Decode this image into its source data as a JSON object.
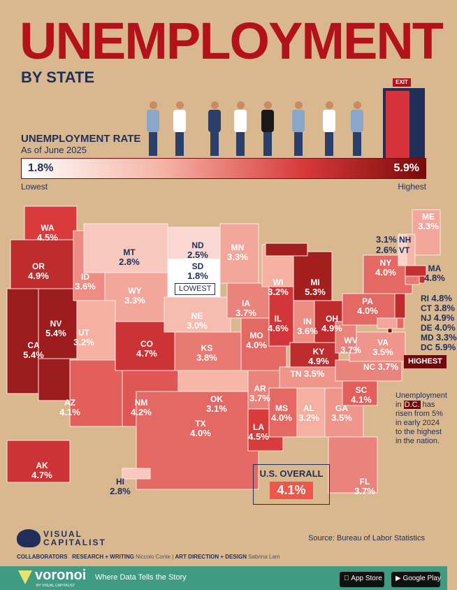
{
  "header": {
    "title": "UNEMPLOYMENT",
    "subtitle": "BY STATE",
    "exit_sign": "EXIT"
  },
  "legend": {
    "label": "UNEMPLOYMENT RATE",
    "sublabel": "As of June 2025",
    "min": "1.8%",
    "max": "5.9%",
    "low_label": "Lowest",
    "high_label": "Highest",
    "colors": {
      "low": "#ffffff",
      "high": "#7a0a0a"
    }
  },
  "states": [
    {
      "abbr": "WA",
      "value": 4.5,
      "text": "4.5%"
    },
    {
      "abbr": "OR",
      "value": 4.9,
      "text": "4.9%"
    },
    {
      "abbr": "CA",
      "value": 5.4,
      "text": "5.4%"
    },
    {
      "abbr": "NV",
      "value": 5.4,
      "text": "5.4%"
    },
    {
      "abbr": "ID",
      "value": 3.6,
      "text": "3.6%"
    },
    {
      "abbr": "MT",
      "value": 2.8,
      "text": "2.8%"
    },
    {
      "abbr": "WY",
      "value": 3.3,
      "text": "3.3%"
    },
    {
      "abbr": "UT",
      "value": 3.2,
      "text": "3.2%"
    },
    {
      "abbr": "AZ",
      "value": 4.1,
      "text": "4.1%"
    },
    {
      "abbr": "CO",
      "value": 4.7,
      "text": "4.7%"
    },
    {
      "abbr": "NM",
      "value": 4.2,
      "text": "4.2%"
    },
    {
      "abbr": "ND",
      "value": 2.5,
      "text": "2.5%"
    },
    {
      "abbr": "SD",
      "value": 1.8,
      "text": "1.8%"
    },
    {
      "abbr": "NE",
      "value": 3.0,
      "text": "3.0%"
    },
    {
      "abbr": "KS",
      "value": 3.8,
      "text": "3.8%"
    },
    {
      "abbr": "OK",
      "value": 3.1,
      "text": "3.1%"
    },
    {
      "abbr": "TX",
      "value": 4.0,
      "text": "4.0%"
    },
    {
      "abbr": "MN",
      "value": 3.3,
      "text": "3.3%"
    },
    {
      "abbr": "IA",
      "value": 3.7,
      "text": "3.7%"
    },
    {
      "abbr": "MO",
      "value": 4.0,
      "text": "4.0%"
    },
    {
      "abbr": "AR",
      "value": 3.7,
      "text": "3.7%"
    },
    {
      "abbr": "LA",
      "value": 4.5,
      "text": "4.5%"
    },
    {
      "abbr": "WI",
      "value": 3.2,
      "text": "3.2%"
    },
    {
      "abbr": "IL",
      "value": 4.6,
      "text": "4.6%"
    },
    {
      "abbr": "MI",
      "value": 5.3,
      "text": "5.3%"
    },
    {
      "abbr": "IN",
      "value": 3.6,
      "text": "3.6%"
    },
    {
      "abbr": "OH",
      "value": 4.9,
      "text": "4.9%"
    },
    {
      "abbr": "KY",
      "value": 4.9,
      "text": "4.9%"
    },
    {
      "abbr": "TN",
      "value": 3.5,
      "text": "3.5%"
    },
    {
      "abbr": "MS",
      "value": 4.0,
      "text": "4.0%"
    },
    {
      "abbr": "AL",
      "value": 3.2,
      "text": "3.2%"
    },
    {
      "abbr": "GA",
      "value": 3.5,
      "text": "3.5%"
    },
    {
      "abbr": "FL",
      "value": 3.7,
      "text": "3.7%"
    },
    {
      "abbr": "SC",
      "value": 4.1,
      "text": "4.1%"
    },
    {
      "abbr": "NC",
      "value": 3.7,
      "text": "3.7%"
    },
    {
      "abbr": "VA",
      "value": 3.5,
      "text": "3.5%"
    },
    {
      "abbr": "WV",
      "value": 3.7,
      "text": "3.7%"
    },
    {
      "abbr": "PA",
      "value": 4.0,
      "text": "4.0%"
    },
    {
      "abbr": "NY",
      "value": 4.0,
      "text": "4.0%"
    },
    {
      "abbr": "ME",
      "value": 3.3,
      "text": "3.3%"
    },
    {
      "abbr": "NH",
      "value": 3.1,
      "text": "3.1%"
    },
    {
      "abbr": "VT",
      "value": 2.6,
      "text": "2.6%"
    },
    {
      "abbr": "MA",
      "value": 4.8,
      "text": "4.8%"
    },
    {
      "abbr": "RI",
      "value": 4.8,
      "text": "4.8%"
    },
    {
      "abbr": "CT",
      "value": 3.8,
      "text": "3.8%"
    },
    {
      "abbr": "NJ",
      "value": 4.9,
      "text": "4.9%"
    },
    {
      "abbr": "DE",
      "value": 4.0,
      "text": "4.0%"
    },
    {
      "abbr": "MD",
      "value": 3.3,
      "text": "3.3%"
    },
    {
      "abbr": "DC",
      "value": 5.9,
      "text": "5.9%"
    },
    {
      "abbr": "AK",
      "value": 4.7,
      "text": "4.7%"
    },
    {
      "abbr": "HI",
      "value": 2.8,
      "text": "2.8%"
    }
  ],
  "annotations": {
    "lowest": "LOWEST",
    "highest": "HIGHEST",
    "dc_note_pre": "Unemployment in ",
    "dc_note_hl": "D.C.",
    "dc_note_post": " has risen from 5% in early 2024 to the highest in the nation."
  },
  "overall": {
    "label": "U.S. OVERALL",
    "value": "4.1%"
  },
  "footer": {
    "brand": "VISUAL CAPITALIST",
    "source": "Source: Bureau of Labor Statistics",
    "collaborators": "COLLABORATORS",
    "research_label": "RESEARCH + WRITING",
    "research_name": "Niccolo Conte",
    "design_label": "ART DIRECTION + DESIGN",
    "design_name": "Sabrina Lam",
    "voronoi": "voronoi",
    "voronoi_sub": "BY VISUAL CAPITALIST",
    "tagline": "Where Data Tells the Story",
    "app_store": "App Store",
    "google_play": "Google Play"
  }
}
